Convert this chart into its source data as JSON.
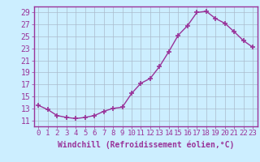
{
  "x": [
    0,
    1,
    2,
    3,
    4,
    5,
    6,
    7,
    8,
    9,
    10,
    11,
    12,
    13,
    14,
    15,
    16,
    17,
    18,
    19,
    20,
    21,
    22,
    23
  ],
  "y": [
    13.5,
    12.8,
    11.8,
    11.5,
    11.3,
    11.5,
    11.8,
    12.5,
    13.0,
    13.2,
    15.5,
    17.2,
    18.0,
    20.0,
    22.5,
    25.2,
    26.8,
    29.0,
    29.2,
    28.0,
    27.2,
    25.8,
    24.3,
    23.2
  ],
  "line_color": "#993399",
  "marker": "+",
  "marker_size": 4,
  "marker_linewidth": 1.2,
  "xlabel": "Windchill (Refroidissement éolien,°C)",
  "xlim": [
    -0.5,
    23.5
  ],
  "ylim": [
    10.0,
    30.0
  ],
  "yticks": [
    11,
    13,
    15,
    17,
    19,
    21,
    23,
    25,
    27,
    29
  ],
  "xticks": [
    0,
    1,
    2,
    3,
    4,
    5,
    6,
    7,
    8,
    9,
    10,
    11,
    12,
    13,
    14,
    15,
    16,
    17,
    18,
    19,
    20,
    21,
    22,
    23
  ],
  "background_color": "#cceeff",
  "plot_bg_color": "#cceeff",
  "grid_color": "#aabbcc",
  "line_sep_color": "#993399",
  "xlabel_color": "#993399",
  "tick_color": "#993399",
  "linewidth": 1.0,
  "tick_fontsize": 6.5,
  "xlabel_fontsize": 7.0,
  "ytick_fontsize": 7.0
}
